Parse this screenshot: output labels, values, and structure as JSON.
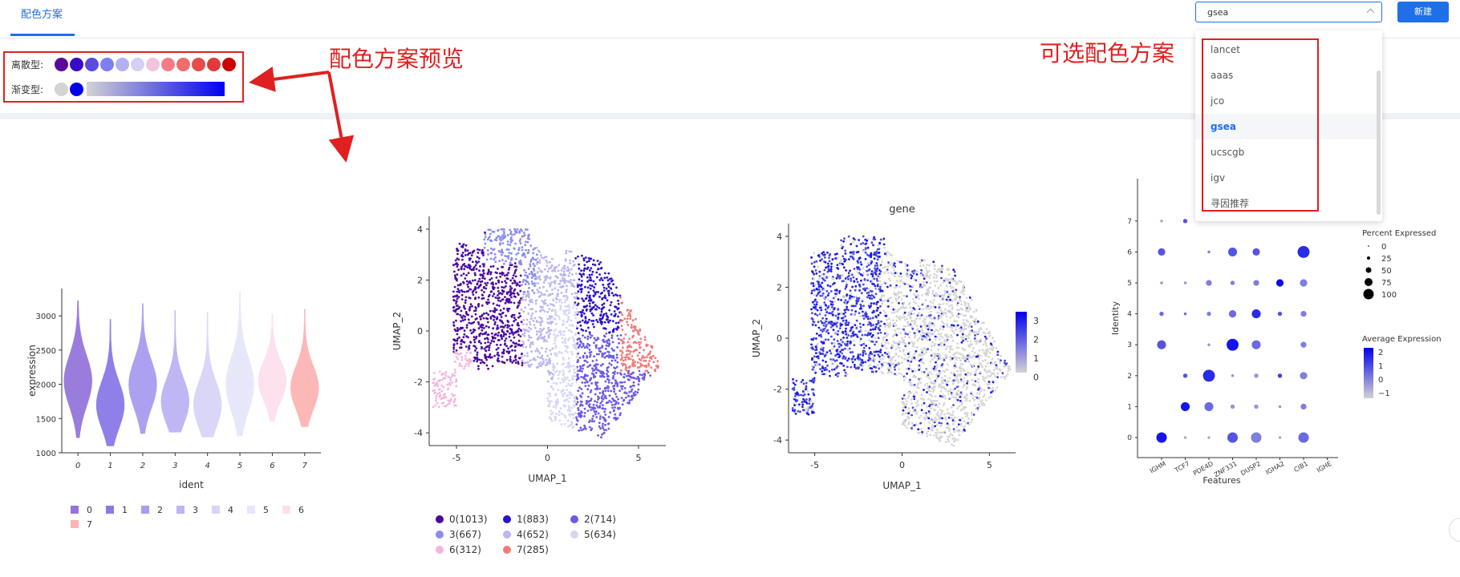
{
  "header": {
    "tab": "配色方案",
    "select_value": "gsea",
    "new_button": "新建"
  },
  "preview": {
    "discrete_label": "离散型:",
    "gradient_label": "渐变型:",
    "discrete_colors": [
      "#5a0a9a",
      "#3a0ac8",
      "#5a4ae0",
      "#7d7ef0",
      "#b4b0f0",
      "#d4d0f4",
      "#f0c4e0",
      "#f47c86",
      "#f06d6d",
      "#e64c4c",
      "#e03a3a",
      "#cc0000"
    ],
    "gradient_low": "#d3d3d3",
    "gradient_high": "#0000ee"
  },
  "annotations": {
    "preview_note": "配色方案预览",
    "options_note": "可选配色方案"
  },
  "dropdown": {
    "options": [
      "lancet",
      "aaas",
      "jco",
      "gsea",
      "ucscgb",
      "igv",
      "寻因推荐"
    ],
    "selected": "gsea"
  },
  "violin": {
    "chart_data": {
      "type": "violin",
      "categories": [
        "0",
        "1",
        "2",
        "3",
        "4",
        "5",
        "6",
        "7"
      ],
      "colors": [
        "#9575dc",
        "#8a79e8",
        "#a89cf0",
        "#bcb4f4",
        "#d8d4f8",
        "#e6e6fa",
        "#fde0ee",
        "#fcb4b4"
      ],
      "medians": [
        2050,
        1700,
        2000,
        1750,
        1700,
        2000,
        2050,
        1950
      ],
      "mins": [
        1220,
        1100,
        1280,
        1300,
        1230,
        1250,
        1460,
        1380
      ],
      "maxs": [
        3220,
        2950,
        3180,
        3080,
        3050,
        3350,
        3030,
        3100
      ],
      "ylim": [
        1000,
        3400
      ],
      "yticks": [
        "1000",
        "1500",
        "2000",
        "2500",
        "3000"
      ],
      "xlabel": "ident",
      "ylabel": "expression",
      "legend": [
        "0",
        "1",
        "2",
        "3",
        "4",
        "5",
        "6",
        "7"
      ]
    }
  },
  "umap": {
    "chart_data": {
      "type": "scatter",
      "xlabel": "UMAP_1",
      "ylabel": "UMAP_2",
      "xticks": [
        "-5",
        "0",
        "5"
      ],
      "yticks": [
        "-4",
        "-2",
        "0",
        "2",
        "4"
      ],
      "legend": [
        "0(1013)",
        "1(883)",
        "2(714)",
        "3(667)",
        "4(652)",
        "5(634)",
        "6(312)",
        "7(285)"
      ],
      "colors": [
        "#4a0aa0",
        "#2a14c8",
        "#6a5ae6",
        "#8a8cf0",
        "#bab6f0",
        "#d6d6f6",
        "#f6b4dc",
        "#f27a7a"
      ]
    }
  },
  "feature": {
    "chart_data": {
      "type": "scatter",
      "title": "gene",
      "xlabel": "UMAP_1",
      "ylabel": "UMAP_2",
      "xticks": [
        "-5",
        "0",
        "5"
      ],
      "yticks": [
        "-4",
        "-2",
        "0",
        "2",
        "4"
      ],
      "colorbar_ticks": [
        "3",
        "2",
        "1",
        "0"
      ]
    }
  },
  "dotplot": {
    "chart_data": {
      "type": "scatter",
      "xlabel": "Features",
      "ylabel": "Identity",
      "features": [
        "IGHM",
        "TCF7",
        "PDE4D",
        "ZNF331",
        "DUSP2",
        "IGHA2",
        "CIB1",
        "IGHE"
      ],
      "identities": [
        "0",
        "1",
        "2",
        "3",
        "4",
        "5",
        "6",
        "7"
      ],
      "pct_legend_title": "Percent Expressed",
      "pct_legend": [
        "0",
        "25",
        "50",
        "75",
        "100"
      ],
      "avg_legend_title": "Average Expression",
      "avg_legend": [
        "2",
        "1",
        "0",
        "−1"
      ]
    }
  }
}
